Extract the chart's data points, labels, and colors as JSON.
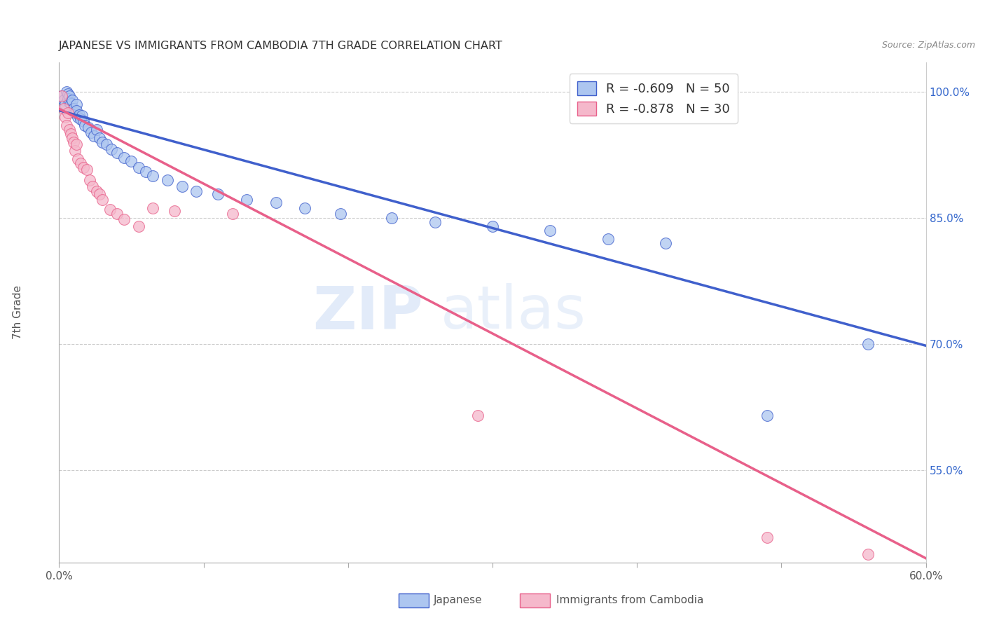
{
  "title": "JAPANESE VS IMMIGRANTS FROM CAMBODIA 7TH GRADE CORRELATION CHART",
  "source": "Source: ZipAtlas.com",
  "ylabel": "7th Grade",
  "xmin": 0.0,
  "xmax": 0.6,
  "ymin": 0.44,
  "ymax": 1.035,
  "yticks": [
    1.0,
    0.85,
    0.7,
    0.55
  ],
  "ytick_labels": [
    "100.0%",
    "85.0%",
    "70.0%",
    "55.0%"
  ],
  "legend_blue_label": "R = -0.609   N = 50",
  "legend_pink_label": "R = -0.878   N = 30",
  "blue_color": "#adc6f0",
  "pink_color": "#f5b8cb",
  "blue_line_color": "#4060cc",
  "pink_line_color": "#e8608a",
  "watermark_zip": "ZIP",
  "watermark_atlas": "atlas",
  "legend_label_japanese": "Japanese",
  "legend_label_cambodia": "Immigrants from Cambodia",
  "blue_scatter_x": [
    0.002,
    0.003,
    0.004,
    0.005,
    0.006,
    0.006,
    0.007,
    0.007,
    0.008,
    0.009,
    0.01,
    0.011,
    0.012,
    0.012,
    0.013,
    0.014,
    0.015,
    0.016,
    0.017,
    0.018,
    0.02,
    0.022,
    0.024,
    0.026,
    0.028,
    0.03,
    0.033,
    0.036,
    0.04,
    0.045,
    0.05,
    0.055,
    0.06,
    0.065,
    0.075,
    0.085,
    0.095,
    0.11,
    0.13,
    0.15,
    0.17,
    0.195,
    0.23,
    0.26,
    0.3,
    0.34,
    0.38,
    0.42,
    0.49,
    0.56
  ],
  "blue_scatter_y": [
    0.995,
    0.99,
    0.985,
    1.0,
    0.998,
    0.992,
    0.995,
    0.988,
    0.986,
    0.99,
    0.98,
    0.975,
    0.985,
    0.978,
    0.97,
    0.973,
    0.968,
    0.972,
    0.965,
    0.96,
    0.958,
    0.952,
    0.948,
    0.955,
    0.945,
    0.94,
    0.938,
    0.932,
    0.928,
    0.922,
    0.918,
    0.91,
    0.905,
    0.9,
    0.895,
    0.888,
    0.882,
    0.878,
    0.872,
    0.868,
    0.862,
    0.855,
    0.85,
    0.845,
    0.84,
    0.835,
    0.825,
    0.82,
    0.615,
    0.7
  ],
  "pink_scatter_x": [
    0.002,
    0.003,
    0.004,
    0.005,
    0.006,
    0.007,
    0.008,
    0.009,
    0.01,
    0.011,
    0.012,
    0.013,
    0.015,
    0.017,
    0.019,
    0.021,
    0.023,
    0.026,
    0.028,
    0.03,
    0.035,
    0.04,
    0.045,
    0.055,
    0.065,
    0.08,
    0.12,
    0.29,
    0.49,
    0.56
  ],
  "pink_scatter_y": [
    0.995,
    0.98,
    0.97,
    0.96,
    0.975,
    0.955,
    0.95,
    0.945,
    0.94,
    0.93,
    0.938,
    0.92,
    0.915,
    0.91,
    0.908,
    0.895,
    0.888,
    0.882,
    0.878,
    0.872,
    0.86,
    0.855,
    0.848,
    0.84,
    0.862,
    0.858,
    0.855,
    0.615,
    0.47,
    0.45
  ],
  "blue_line_x": [
    0.0,
    0.6
  ],
  "blue_line_y": [
    0.978,
    0.698
  ],
  "pink_line_x": [
    0.0,
    0.6
  ],
  "pink_line_y": [
    0.98,
    0.445
  ]
}
